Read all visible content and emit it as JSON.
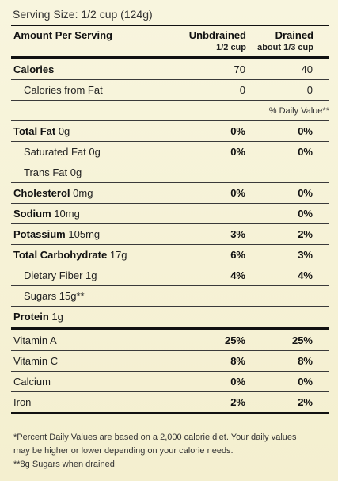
{
  "serving_size": "Serving Size: 1/2 cup (124g)",
  "header": {
    "amount_per_serving": "Amount Per Serving",
    "col1_title": "Unbdrained",
    "col1_sub": "1/2 cup",
    "col2_title": "Drained",
    "col2_sub": "about 1/3 cup"
  },
  "calories": {
    "label": "Calories",
    "unbdrained": "70",
    "drained": "40"
  },
  "calories_from_fat": {
    "label": "Calories from Fat",
    "unbdrained": "0",
    "drained": "0"
  },
  "daily_value_header": "% Daily Value**",
  "nutrients": [
    {
      "name": "Total Fat",
      "amount": "0g",
      "unbdrained": "0%",
      "drained": "0%"
    },
    {
      "name": "Saturated Fat 0g",
      "amount": "",
      "unbdrained": "0%",
      "drained": "0%"
    },
    {
      "name": "Trans Fat 0g",
      "amount": "",
      "unbdrained": "",
      "drained": ""
    },
    {
      "name": "Cholesterol",
      "amount": "0mg",
      "unbdrained": "0%",
      "drained": "0%"
    },
    {
      "name": "Sodium",
      "amount": "10mg",
      "unbdrained": "",
      "drained": "0%"
    },
    {
      "name": "Potassium",
      "amount": "105mg",
      "unbdrained": "3%",
      "drained": "2%"
    },
    {
      "name": "Total Carbohydrate",
      "amount": "17g",
      "unbdrained": "6%",
      "drained": "3%"
    },
    {
      "name": "Dietary Fiber 1g",
      "amount": "",
      "unbdrained": "4%",
      "drained": "4%"
    },
    {
      "name": "Sugars 15g**",
      "amount": "",
      "unbdrained": "",
      "drained": ""
    },
    {
      "name": "Protein",
      "amount": "1g",
      "unbdrained": "",
      "drained": ""
    }
  ],
  "vitamins": [
    {
      "name": "Vitamin A",
      "unbdrained": "25%",
      "drained": "25%"
    },
    {
      "name": "Vitamin C",
      "unbdrained": "8%",
      "drained": "8%"
    },
    {
      "name": "Calcium",
      "unbdrained": "0%",
      "drained": "0%"
    },
    {
      "name": "Iron",
      "unbdrained": "2%",
      "drained": "2%"
    }
  ],
  "footnotes": {
    "line1": "*Percent Daily Values are based on a 2,000 calorie diet. Your daily values",
    "line2": "may be higher or lower depending on your calorie needs.",
    "line3": "**8g Sugars when drained"
  }
}
